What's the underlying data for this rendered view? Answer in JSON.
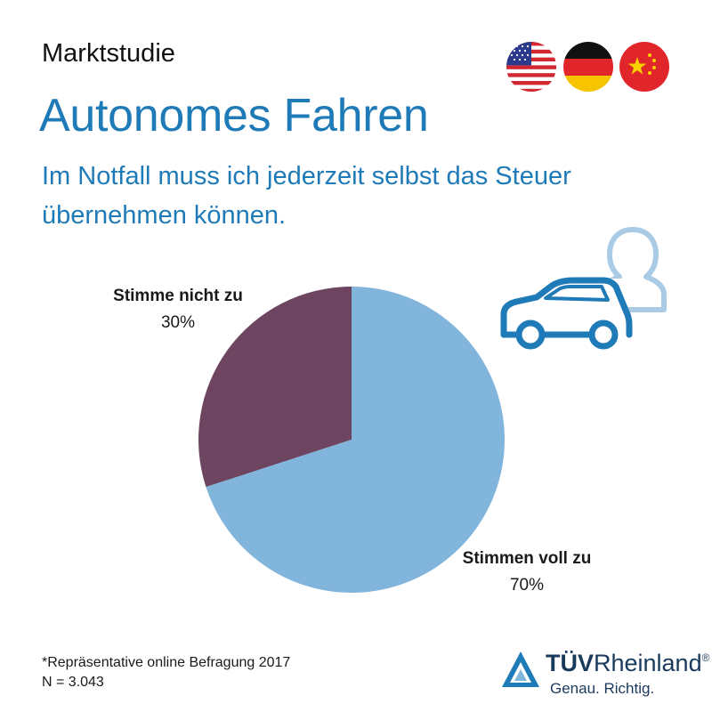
{
  "header": {
    "kicker": "Marktstudie",
    "title": "Autonomes Fahren",
    "subtitle_line1": "Im Notfall muss ich jederzeit selbst das Steuer",
    "subtitle_line2": "übernehmen können."
  },
  "flags": [
    "usa-flag-icon",
    "germany-flag-icon",
    "china-flag-icon"
  ],
  "illustration": "car-driver-icon",
  "chart_data": {
    "type": "pie",
    "categories": [
      "Stimme nicht zu",
      "Stimmen voll zu"
    ],
    "values": [
      30,
      70
    ],
    "value_labels": [
      "30%",
      "70%"
    ],
    "colors": [
      "#6e4560",
      "#82b5dc"
    ]
  },
  "footnote": {
    "line1": "*Repräsentative online Befragung 2017",
    "line2": "N = 3.043"
  },
  "logo": {
    "brand_bold": "TÜV",
    "brand_regular": "Rheinland",
    "registered": "®",
    "slogan": "Genau. Richtig."
  },
  "colors": {
    "accent": "#1f7ab8",
    "icon_light": "#a9cbe6",
    "logo_text": "#1a3a5c"
  }
}
